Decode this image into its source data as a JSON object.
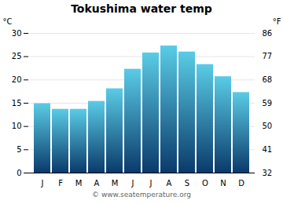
{
  "chart_data": {
    "type": "bar",
    "title": "Tokushima water temp",
    "categories": [
      "J",
      "F",
      "M",
      "A",
      "M",
      "J",
      "J",
      "A",
      "S",
      "O",
      "N",
      "D"
    ],
    "values": [
      14.9,
      13.7,
      13.7,
      15.4,
      18.1,
      22.3,
      25.8,
      27.3,
      26.0,
      23.3,
      20.7,
      17.3
    ],
    "color": [
      "#0a3a6b",
      "#5acce6"
    ],
    "ylim": [
      0,
      30
    ],
    "yticks": [
      0,
      5,
      10,
      15,
      20,
      25,
      30
    ],
    "ylabel": "°C",
    "y2lim": [
      32,
      86
    ],
    "y2ticks": [
      32,
      41,
      50,
      59,
      68,
      77,
      86
    ],
    "y2label": "°F",
    "grid": true,
    "annotation": "© www.seatemperature.org"
  }
}
